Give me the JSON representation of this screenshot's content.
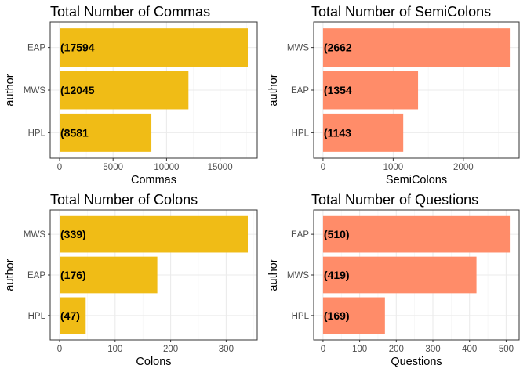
{
  "chart_data": [
    {
      "type": "bar",
      "orientation": "horizontal",
      "title": "Total Number of Commas",
      "xlabel": "Commas",
      "ylabel": "author",
      "categories": [
        "EAP",
        "MWS",
        "HPL"
      ],
      "values": [
        17594,
        12045,
        8581
      ],
      "labels": [
        "(17594",
        "(12045",
        "(8581"
      ],
      "xlim": [
        0,
        17594
      ],
      "xticks": [
        0,
        5000,
        10000,
        15000
      ],
      "color": "#F0BC16",
      "grid": true
    },
    {
      "type": "bar",
      "orientation": "horizontal",
      "title": "Total Number of SemiColons",
      "xlabel": "SemiColons",
      "ylabel": "author",
      "categories": [
        "MWS",
        "EAP",
        "HPL"
      ],
      "values": [
        2662,
        1354,
        1143
      ],
      "labels": [
        "(2662",
        "(1354",
        "(1143"
      ],
      "xlim": [
        0,
        2662
      ],
      "xticks": [
        0,
        1000,
        2000
      ],
      "color": "#FF8C69",
      "grid": true
    },
    {
      "type": "bar",
      "orientation": "horizontal",
      "title": "Total Number of Colons",
      "xlabel": "Colons",
      "ylabel": "author",
      "categories": [
        "MWS",
        "EAP",
        "HPL"
      ],
      "values": [
        339,
        176,
        47
      ],
      "labels": [
        "(339)",
        "(176)",
        "(47)"
      ],
      "xlim": [
        0,
        339
      ],
      "xticks": [
        0,
        100,
        200,
        300
      ],
      "color": "#F0BC16",
      "grid": true
    },
    {
      "type": "bar",
      "orientation": "horizontal",
      "title": "Total Number of Questions",
      "xlabel": "Questions",
      "ylabel": "author",
      "categories": [
        "EAP",
        "MWS",
        "HPL"
      ],
      "values": [
        510,
        419,
        169
      ],
      "labels": [
        "(510)",
        "(419)",
        "(169)"
      ],
      "xlim": [
        0,
        510
      ],
      "xticks": [
        0,
        100,
        200,
        300,
        400,
        500
      ],
      "color": "#FF8C69",
      "grid": true
    }
  ]
}
